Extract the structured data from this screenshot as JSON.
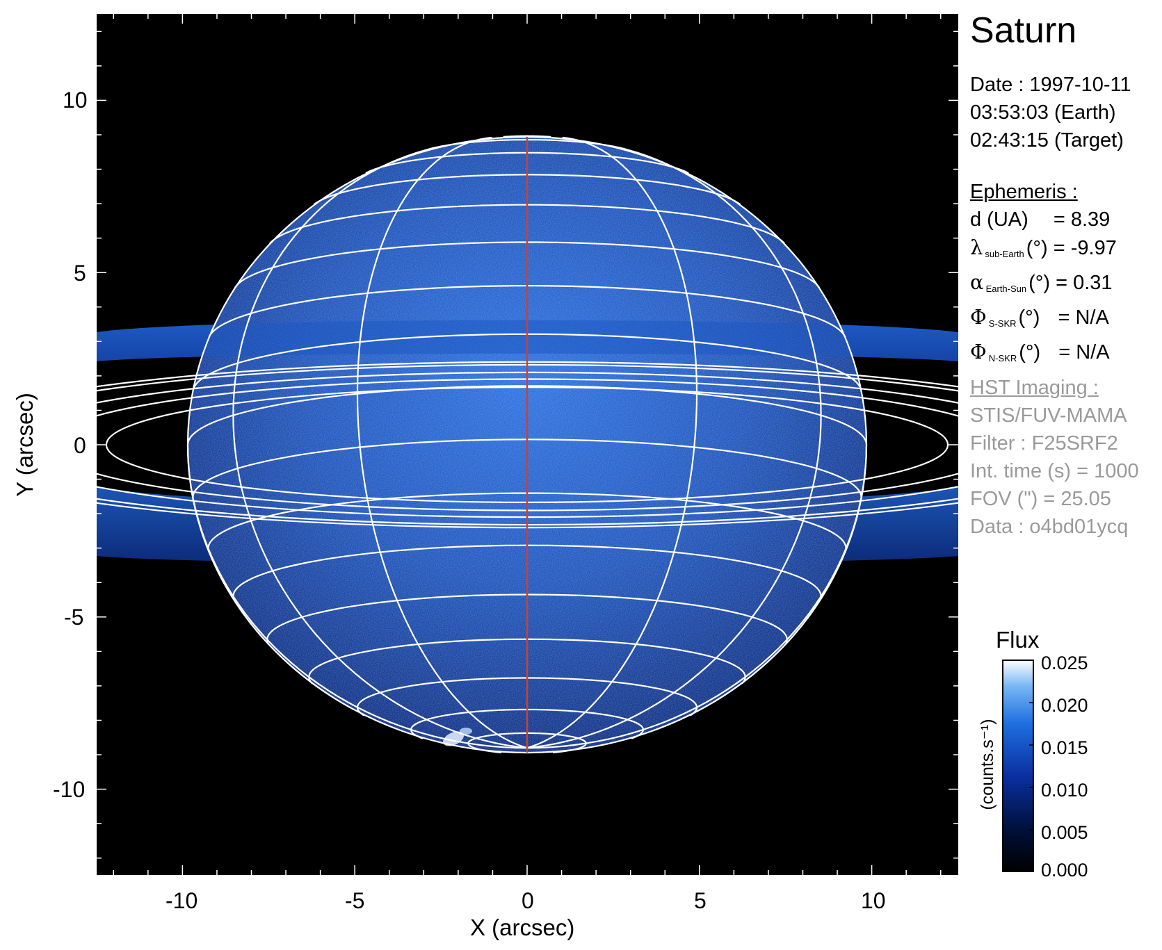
{
  "title": "Saturn",
  "info": {
    "date_line": "Date : 1997-10-11",
    "time_earth": "03:53:03 (Earth)",
    "time_target": "02:43:15 (Target)"
  },
  "ephemeris": {
    "header": "Ephemeris :",
    "d_label": "d (UA)",
    "d_value": "= 8.39",
    "lambda_symbol": "λ",
    "lambda_sub": "sub-Earth",
    "lambda_unit": "(°)",
    "lambda_value": "= -9.97",
    "alpha_symbol": "α",
    "alpha_sub": "Earth-Sun",
    "alpha_unit": "(°)",
    "alpha_value": "= 0.31",
    "phi_s_symbol": "Φ",
    "phi_s_sub": "S-SKR",
    "phi_s_unit": "(°)",
    "phi_s_value": "= N/A",
    "phi_n_symbol": "Φ",
    "phi_n_sub": "N-SKR",
    "phi_n_unit": "(°)",
    "phi_n_value": "= N/A"
  },
  "imaging": {
    "header": "HST Imaging :",
    "instrument": "STIS/FUV-MAMA",
    "filter": "Filter : F25SRF2",
    "int_time": "Int. time (s) = 1000",
    "fov": "FOV (\") = 25.05",
    "data": "Data : o4bd01ycq"
  },
  "axes": {
    "xlabel": "X (arcsec)",
    "ylabel": "Y (arcsec)",
    "xlim": [
      -12.5,
      12.5
    ],
    "ylim": [
      -12.5,
      12.5
    ],
    "xticks": [
      "-10",
      "-5",
      "0",
      "5",
      "10"
    ],
    "yticks": [
      "10",
      "5",
      "0",
      "-5",
      "-10"
    ]
  },
  "colorbar": {
    "title": "Flux",
    "unit": "(counts.s⁻¹)",
    "ticks": [
      "0.025",
      "0.020",
      "0.015",
      "0.010",
      "0.005",
      "0.000"
    ],
    "range": [
      0.0,
      0.025
    ]
  },
  "colors": {
    "background": "#000000",
    "planet_dark": "#0a2a7a",
    "planet_bright": "#1f63d6",
    "grid_lines": "#ffffff",
    "central_meridian": "#d0402a"
  }
}
